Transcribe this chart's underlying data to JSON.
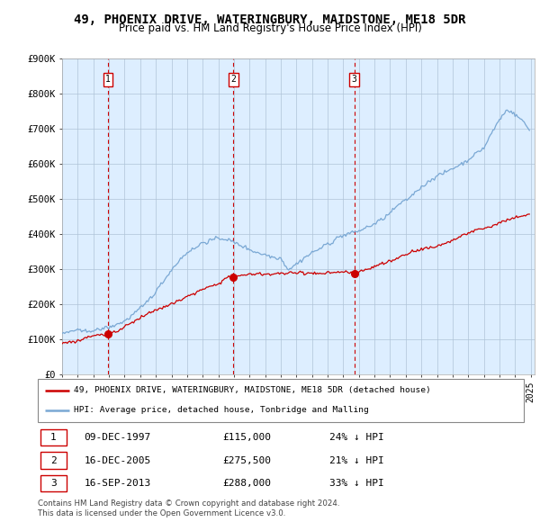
{
  "title": "49, PHOENIX DRIVE, WATERINGBURY, MAIDSTONE, ME18 5DR",
  "subtitle": "Price paid vs. HM Land Registry's House Price Index (HPI)",
  "title_fontsize": 10,
  "subtitle_fontsize": 8.5,
  "price_paid": [
    {
      "date": "1997-12-09",
      "price": 115000,
      "label": "1"
    },
    {
      "date": "2005-12-16",
      "price": 275500,
      "label": "2"
    },
    {
      "date": "2013-09-16",
      "price": 288000,
      "label": "3"
    }
  ],
  "legend_line1": "49, PHOENIX DRIVE, WATERINGBURY, MAIDSTONE, ME18 5DR (detached house)",
  "legend_line2": "HPI: Average price, detached house, Tonbridge and Malling",
  "table": [
    {
      "num": "1",
      "date": "09-DEC-1997",
      "price": "£115,000",
      "hpi": "24% ↓ HPI"
    },
    {
      "num": "2",
      "date": "16-DEC-2005",
      "price": "£275,500",
      "hpi": "21% ↓ HPI"
    },
    {
      "num": "3",
      "date": "16-SEP-2013",
      "price": "£288,000",
      "hpi": "33% ↓ HPI"
    }
  ],
  "footer1": "Contains HM Land Registry data © Crown copyright and database right 2024.",
  "footer2": "This data is licensed under the Open Government Licence v3.0.",
  "price_line_color": "#cc0000",
  "hpi_line_color": "#7aa8d4",
  "background_color": "#ddeeff",
  "plot_bg_color": "#ddeeff",
  "grid_color": "#b0c4d8",
  "vline_color": "#cc0000",
  "marker_color": "#cc0000",
  "box_edge_color": "#cc0000",
  "ylim": [
    0,
    900000
  ],
  "yticks": [
    0,
    100000,
    200000,
    300000,
    400000,
    500000,
    600000,
    700000,
    800000,
    900000
  ],
  "ytick_labels": [
    "£0",
    "£100K",
    "£200K",
    "£300K",
    "£400K",
    "£500K",
    "£600K",
    "£700K",
    "£800K",
    "£900K"
  ]
}
